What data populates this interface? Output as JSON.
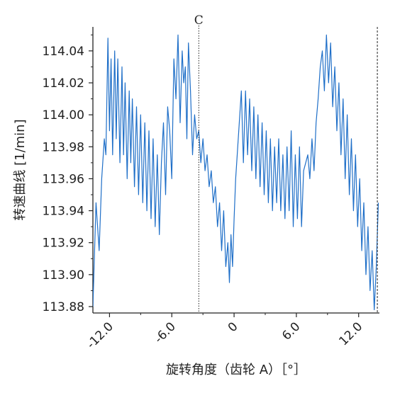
{
  "chart_data": {
    "type": "line",
    "xlabel": "旋转角度（齿轮 A）［°］",
    "ylabel": "转速曲线 [1/min]",
    "xlim": [
      -13.6,
      14.0
    ],
    "ylim": [
      113.876,
      114.055
    ],
    "x_ticks": [
      -12,
      -6,
      0,
      6,
      12
    ],
    "x_tick_labels": [
      "-12.0",
      "-6.0",
      "0",
      "6.0",
      "12.0"
    ],
    "y_ticks": [
      113.88,
      113.9,
      113.92,
      113.94,
      113.96,
      113.98,
      114.0,
      114.02,
      114.04
    ],
    "y_tick_labels": [
      "113.88",
      "113.90",
      "113.92",
      "113.94",
      "113.96",
      "113.98",
      "114.00",
      "114.02",
      "114.04"
    ],
    "marker": {
      "label": "C",
      "x": -3.4,
      "style": "dotted"
    },
    "right_marker": {
      "x": 13.8,
      "style": "dashed"
    },
    "grid": false,
    "line_color": "#1f6fc8",
    "series": [
      {
        "name": "",
        "x": [
          -13.6,
          -13.3,
          -13.0,
          -12.75,
          -12.5,
          -12.35,
          -12.15,
          -12.0,
          -11.85,
          -11.7,
          -11.5,
          -11.35,
          -11.2,
          -11.0,
          -10.8,
          -10.65,
          -10.5,
          -10.3,
          -10.1,
          -9.95,
          -9.8,
          -9.6,
          -9.4,
          -9.2,
          -9.0,
          -8.8,
          -8.6,
          -8.4,
          -8.2,
          -8.0,
          -7.8,
          -7.6,
          -7.4,
          -7.2,
          -7.0,
          -6.8,
          -6.6,
          -6.4,
          -6.2,
          -6.0,
          -5.8,
          -5.6,
          -5.4,
          -5.2,
          -5.0,
          -4.85,
          -4.7,
          -4.55,
          -4.4,
          -4.2,
          -4.0,
          -3.8,
          -3.6,
          -3.4,
          -3.2,
          -3.0,
          -2.8,
          -2.6,
          -2.4,
          -2.2,
          -2.0,
          -1.8,
          -1.6,
          -1.4,
          -1.2,
          -1.0,
          -0.8,
          -0.6,
          -0.45,
          -0.3,
          -0.15,
          0.0,
          0.15,
          0.3,
          0.5,
          0.7,
          0.9,
          1.1,
          1.3,
          1.5,
          1.7,
          1.9,
          2.1,
          2.3,
          2.5,
          2.7,
          2.9,
          3.1,
          3.3,
          3.5,
          3.7,
          3.9,
          4.1,
          4.3,
          4.5,
          4.7,
          4.9,
          5.1,
          5.3,
          5.5,
          5.7,
          5.9,
          6.1,
          6.3,
          6.5,
          6.7,
          6.9,
          7.1,
          7.3,
          7.5,
          7.7,
          7.9,
          8.1,
          8.3,
          8.5,
          8.7,
          8.9,
          9.1,
          9.3,
          9.5,
          9.7,
          9.9,
          10.1,
          10.3,
          10.5,
          10.7,
          10.9,
          11.1,
          11.3,
          11.5,
          11.7,
          11.9,
          12.1,
          12.3,
          12.5,
          12.7,
          12.9,
          13.1,
          13.3,
          13.5,
          13.7,
          13.9
        ],
        "values": [
          113.88,
          113.945,
          113.915,
          113.96,
          113.985,
          113.975,
          114.048,
          113.99,
          114.035,
          113.975,
          114.04,
          113.985,
          114.035,
          113.97,
          114.03,
          113.975,
          114.02,
          113.96,
          114.015,
          113.97,
          114.01,
          113.955,
          114.005,
          113.95,
          114.0,
          113.945,
          113.995,
          113.94,
          113.99,
          113.935,
          113.985,
          113.93,
          113.975,
          113.925,
          113.97,
          113.995,
          113.95,
          114.005,
          113.99,
          113.96,
          114.035,
          114.01,
          114.05,
          113.995,
          114.04,
          114.02,
          114.03,
          113.985,
          114.045,
          114.015,
          113.975,
          114.0,
          113.985,
          113.99,
          113.97,
          113.985,
          113.965,
          113.975,
          113.955,
          113.965,
          113.945,
          113.955,
          113.93,
          113.945,
          113.915,
          113.94,
          113.905,
          113.92,
          113.895,
          113.925,
          113.905,
          113.935,
          113.96,
          113.975,
          113.995,
          114.015,
          113.97,
          114.015,
          113.975,
          114.01,
          113.965,
          114.005,
          113.96,
          114.0,
          113.955,
          113.995,
          113.95,
          113.99,
          113.945,
          113.985,
          113.94,
          113.98,
          113.945,
          113.985,
          113.94,
          113.975,
          113.935,
          113.98,
          113.94,
          113.99,
          113.93,
          113.975,
          113.935,
          113.98,
          113.93,
          113.965,
          113.97,
          113.975,
          113.96,
          113.985,
          113.965,
          113.995,
          114.01,
          114.03,
          114.04,
          114.015,
          114.05,
          114.02,
          114.045,
          114.005,
          114.03,
          113.99,
          114.02,
          113.975,
          114.01,
          113.96,
          114.0,
          113.95,
          113.985,
          113.94,
          113.975,
          113.93,
          113.96,
          113.915,
          113.945,
          113.9,
          113.93,
          113.89,
          113.915,
          113.878,
          113.905,
          113.945
        ]
      }
    ]
  }
}
